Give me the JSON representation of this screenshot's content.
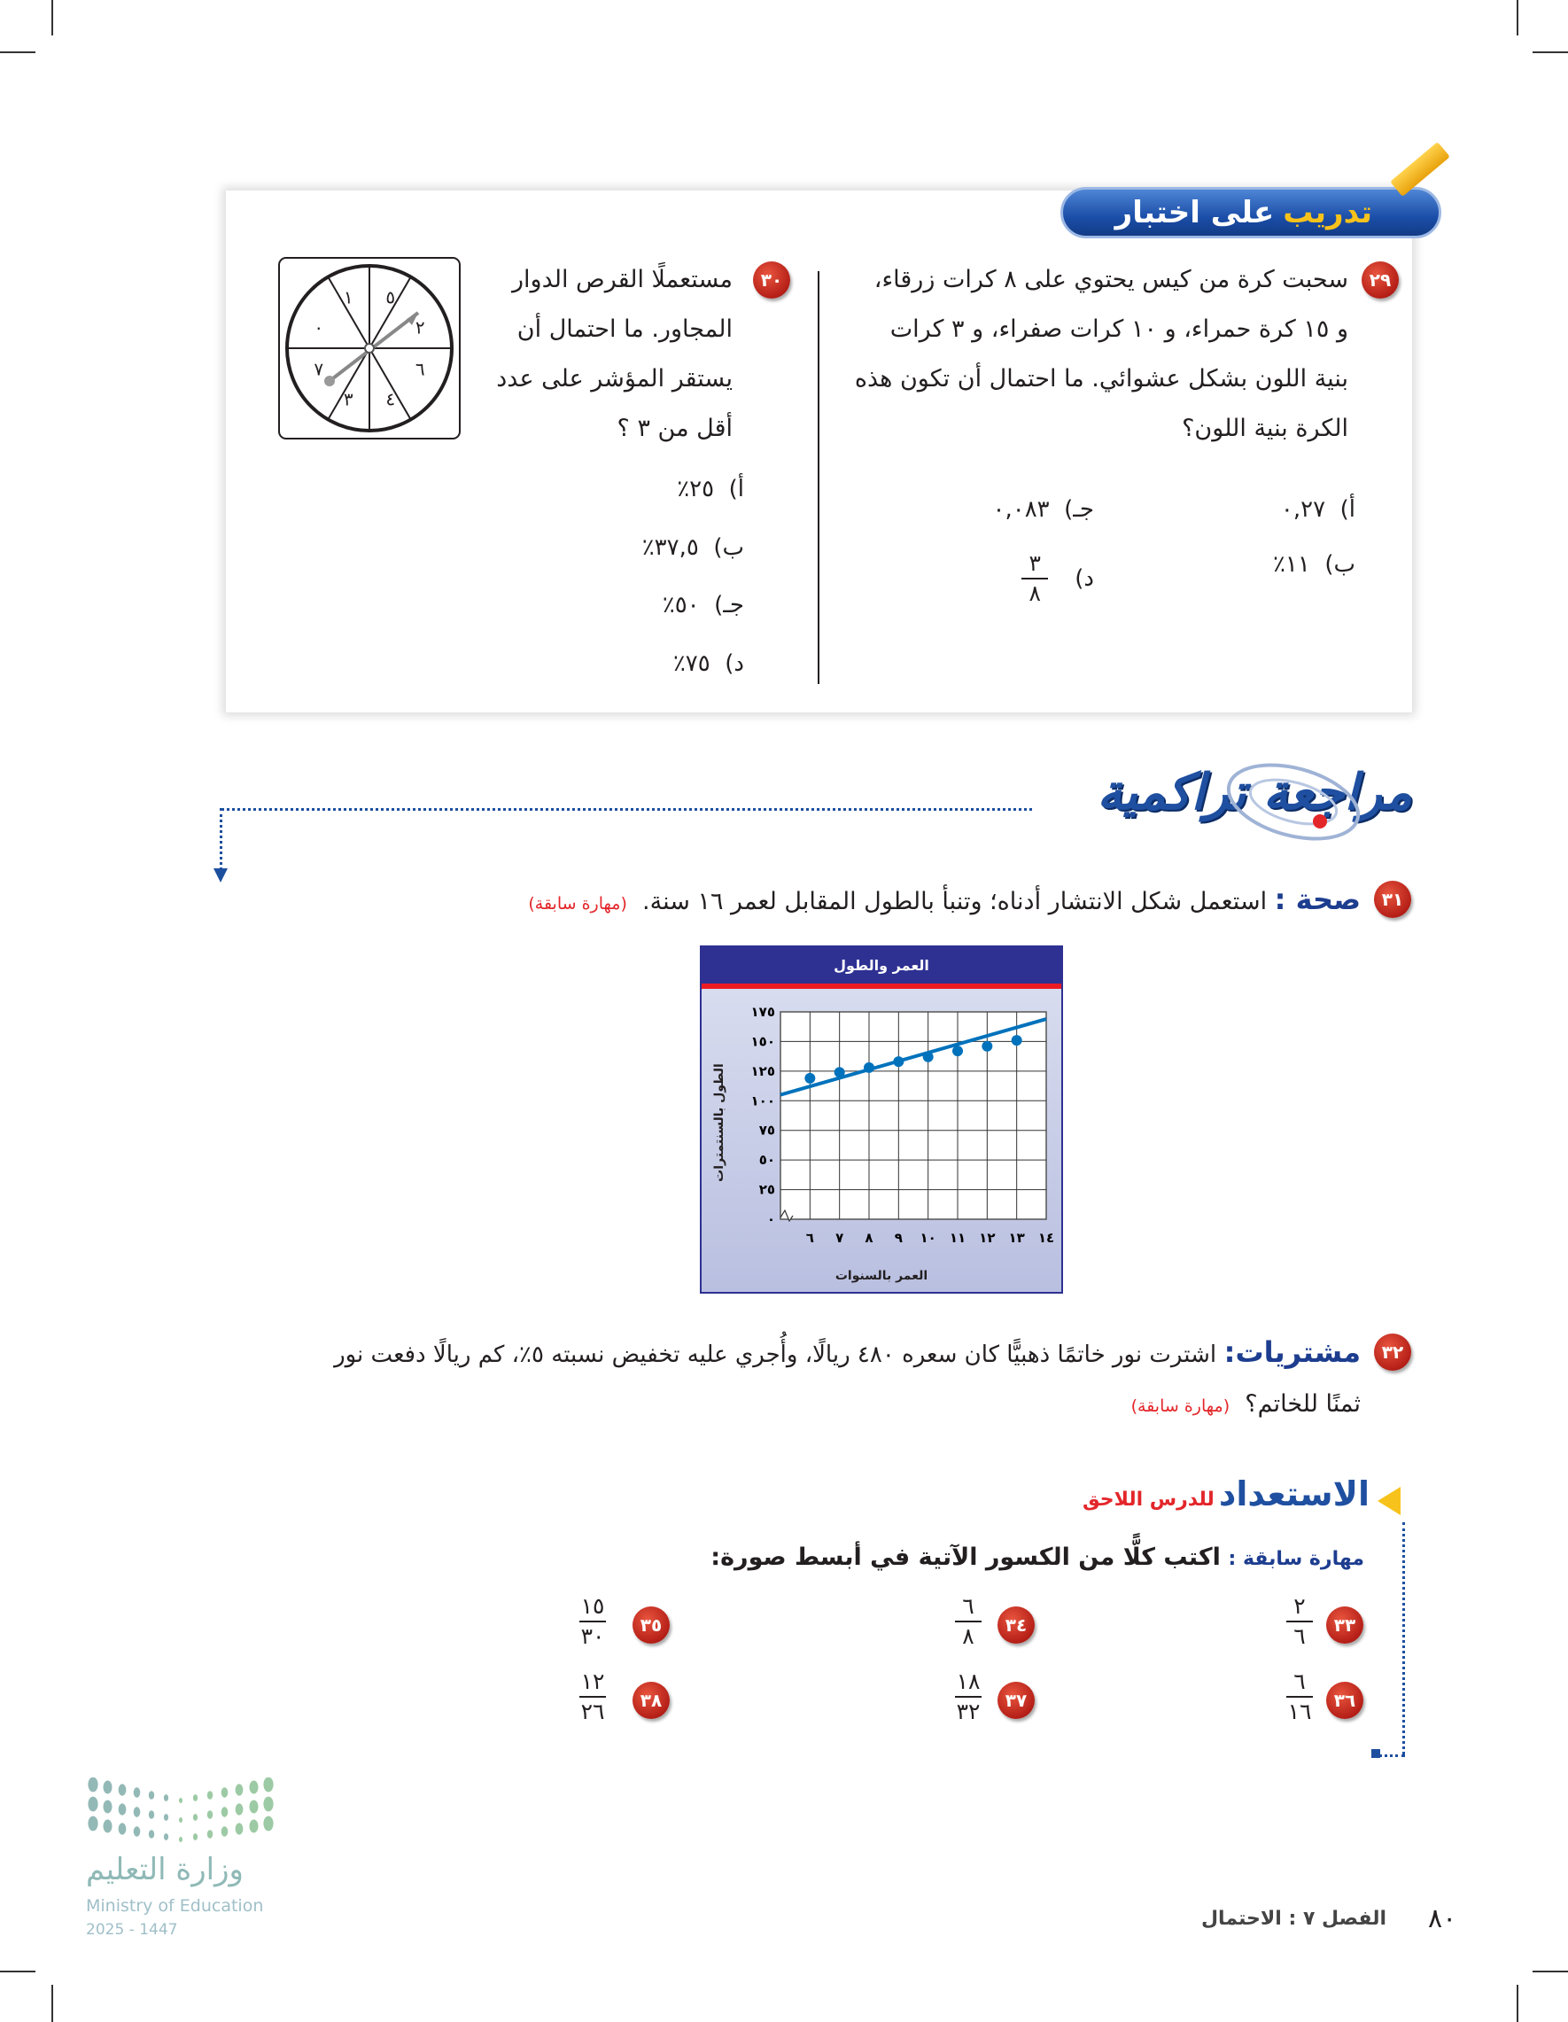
{
  "test_practice": {
    "banner_highlight": "تدريب",
    "banner_rest": "على اختبار",
    "q29": {
      "number": "٢٩",
      "lines": [
        "سحبت كرة من كيس يحتوي على ٨ كرات زرقاء،",
        "و ١٥ كرة حمراء، و ١٠ كرات صفراء، و ٣ كرات",
        "بنية اللون بشكل عشوائي. ما احتمال أن تكون هذه",
        "الكرة بنية اللون؟"
      ],
      "options": [
        {
          "label": "أ)",
          "value": "٠,٢٧"
        },
        {
          "label": "ب)",
          "value": "١١٪"
        },
        {
          "label": "جـ)",
          "value": "٠,٠٨٣"
        },
        {
          "label": "د)",
          "numerator": "٣",
          "denominator": "٨"
        }
      ]
    },
    "q30": {
      "number": "٣٠",
      "lines": [
        "مستعملًا القرص الدوار",
        "المجاور. ما احتمال أن",
        "يستقر المؤشر على عدد",
        "أقل من ٣ ؟"
      ],
      "options": [
        {
          "label": "أ)",
          "value": "٢٥٪"
        },
        {
          "label": "ب)",
          "value": "٣٧,٥٪"
        },
        {
          "label": "جـ)",
          "value": "٥٠٪"
        },
        {
          "label": "د)",
          "value": "٧٥٪"
        }
      ],
      "spinner_numbers": [
        "٥",
        "٢",
        "٦",
        "٤",
        "٣",
        "٧",
        "٠",
        "١"
      ]
    }
  },
  "cumulative_review": {
    "title": "مراجعة تراكمية",
    "q31": {
      "number": "٣١",
      "topic": "صحة :",
      "text": "استعمل شكل الانتشار أدناه؛ وتنبأ بالطول المقابل لعمر ١٦ سنة.",
      "skill": "(مهارة سابقة)"
    },
    "q32": {
      "number": "٣٢",
      "topic": "مشتريات:",
      "line1": "اشترت نور خاتمًا ذهبيًّا كان سعره ٤٨٠ ريالًا، وأُجري عليه تخفيض نسبته ٥٪، كم ريالًا دفعت نور",
      "line2": "ثمنًا للخاتم؟",
      "skill": "(مهارة سابقة)"
    }
  },
  "chart_data": {
    "type": "scatter",
    "title": "العمر والطول",
    "xlabel": "العمر بالسنوات",
    "ylabel": "الطول بالسنتمترات",
    "x_ticks": [
      "٦",
      "٧",
      "٨",
      "٩",
      "١٠",
      "١١",
      "١٢",
      "١٣",
      "١٤"
    ],
    "y_ticks": [
      "٠",
      "٢٥",
      "٥٠",
      "٧٥",
      "١٠٠",
      "١٢٥",
      "١٥٠",
      "١٧٥"
    ],
    "xlim": [
      5,
      14
    ],
    "ylim": [
      0,
      175
    ],
    "grid": true,
    "points": [
      {
        "x": 6,
        "y": 119
      },
      {
        "x": 7,
        "y": 124
      },
      {
        "x": 8,
        "y": 128
      },
      {
        "x": 9,
        "y": 133
      },
      {
        "x": 10,
        "y": 137
      },
      {
        "x": 11,
        "y": 142
      },
      {
        "x": 12,
        "y": 146
      },
      {
        "x": 13,
        "y": 151
      }
    ],
    "trend_line": [
      {
        "x": 5,
        "y": 105
      },
      {
        "x": 14,
        "y": 169
      }
    ],
    "colors": {
      "header": "#2e3192",
      "stripe": "#ed1c24",
      "points": "#0072bc"
    }
  },
  "get_ready": {
    "title": "الاستعداد",
    "subtitle": "للدرس اللاحق",
    "skill_label": "مهارة سابقة :",
    "instruction": "اكتب كلًّا من الكسور الآتية في أبسط صورة:",
    "items": [
      {
        "number": "٣٣",
        "n": "٢",
        "d": "٦"
      },
      {
        "number": "٣٤",
        "n": "٦",
        "d": "٨"
      },
      {
        "number": "٣٥",
        "n": "١٥",
        "d": "٣٠"
      },
      {
        "number": "٣٦",
        "n": "٦",
        "d": "١٦"
      },
      {
        "number": "٣٧",
        "n": "١٨",
        "d": "٣٢"
      },
      {
        "number": "٣٨",
        "n": "١٢",
        "d": "٢٦"
      }
    ]
  },
  "footer": {
    "page_number": "٨٠",
    "chapter": "الفصل ٧ : الاحتمال"
  },
  "logo": {
    "arabic": "وزارة التعليم",
    "english": "Ministry of Education",
    "year": "2025 - 1447"
  }
}
